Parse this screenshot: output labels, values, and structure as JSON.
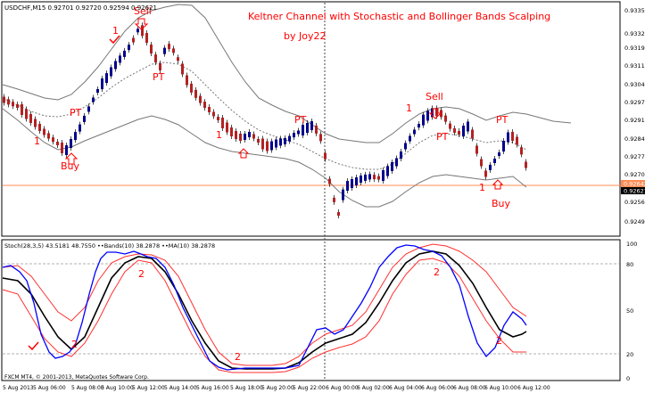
{
  "main_chart": {
    "info_line": "USDCHF,M15  0.92701 0.92720 0.92594 0.92621",
    "title": "Keltner Channel with Stochastic and Bollinger Bands Scalping",
    "author": "by Joy22",
    "price_labels": [
      "0.93350",
      "0.93325",
      "0.93195",
      "0.93115",
      "0.93045",
      "0.92975",
      "0.92910",
      "0.92840",
      "0.92775",
      "0.92705",
      "0.92642",
      "0.92621",
      "0.92565",
      "0.92495"
    ],
    "current_price": "0.92621",
    "horizontal_line_price": "0.92642",
    "annotations": [
      {
        "text": "Sell",
        "color": "#ff0000"
      },
      {
        "text": "1",
        "color": "#ff0000"
      },
      {
        "text": "PT",
        "color": "#ff0000"
      },
      {
        "text": "PT",
        "color": "#ff0000"
      },
      {
        "text": "1",
        "color": "#ff0000"
      },
      {
        "text": "Buy",
        "color": "#ff0000"
      },
      {
        "text": "1",
        "color": "#ff0000"
      },
      {
        "text": "PT",
        "color": "#ff0000"
      },
      {
        "text": "1",
        "color": "#ff0000"
      },
      {
        "text": "Sell",
        "color": "#ff0000"
      },
      {
        "text": "PT",
        "color": "#ff0000"
      },
      {
        "text": "PT",
        "color": "#ff0000"
      },
      {
        "text": "1",
        "color": "#ff0000"
      },
      {
        "text": "Buy",
        "color": "#ff0000"
      }
    ]
  },
  "sub_chart": {
    "info_line": "Stoch(28,3,5) 43.5181 48.7550  ••Bands(10) 38.2878  ••MA(10) 38.2878",
    "level_labels": [
      "100",
      "80",
      "50",
      "20",
      "0"
    ],
    "annotations": [
      "2",
      "2",
      "2",
      "2",
      "2"
    ]
  },
  "copyright": "FXCM MT4, © 2001-2013, MetaQuotes Software Corp.",
  "time_labels": [
    "5 Aug 2013",
    "5 Aug 06:00",
    "5 Aug 08:00",
    "5 Aug 10:00",
    "5 Aug 12:00",
    "5 Aug 14:00",
    "5 Aug 16:00",
    "5 Aug 18:00",
    "5 Aug 20:00",
    "5 Aug 22:00",
    "6 Aug 00:00",
    "6 Aug 02:00",
    "6 Aug 04:00",
    "6 Aug 06:00",
    "6 Aug 08:00",
    "6 Aug 10:00",
    "6 Aug 12:00"
  ],
  "colors": {
    "bull_candle": "#00008b",
    "bear_candle": "#b22222",
    "annotation": "#ff0000",
    "stoch_main": "#0000ff",
    "stoch_signal": "#000000",
    "bands": "#ff4040",
    "channel": "#666666",
    "price_line": "#ff8c55"
  }
}
